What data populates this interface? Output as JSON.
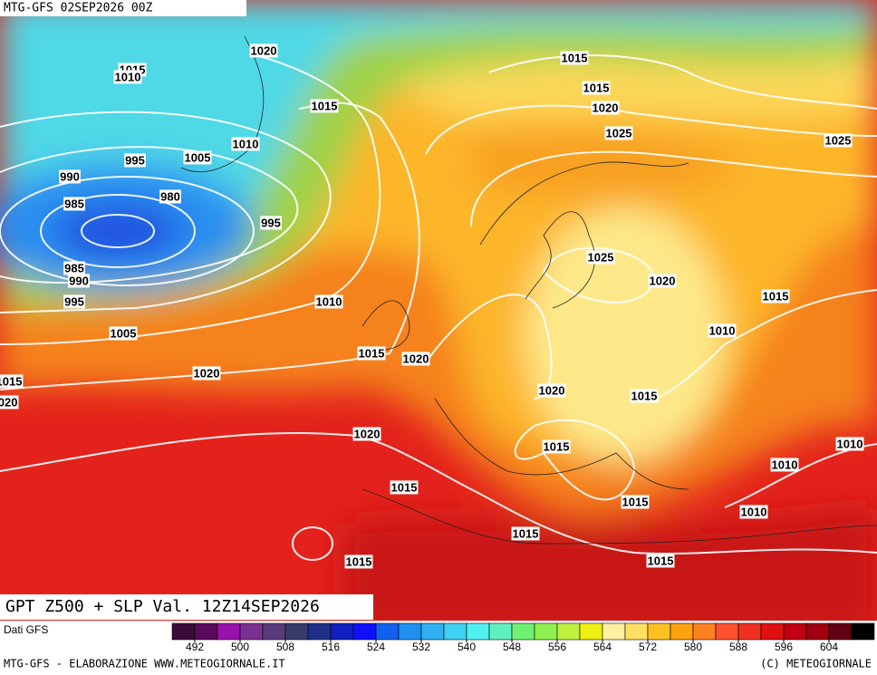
{
  "header": {
    "title": "MTG-GFS 02SEP2026 00Z"
  },
  "map": {
    "caption": "GPT Z500 + SLP Val. 12Z14SEP2026",
    "isobar_labels": [
      "1015",
      "1010",
      "1020",
      "1015",
      "1015",
      "1020",
      "1015",
      "1025",
      "1025",
      "1010",
      "995",
      "1005",
      "990",
      "980",
      "985",
      "995",
      "1025",
      "985",
      "990",
      "1020",
      "995",
      "1010",
      "1015",
      "1005",
      "1010",
      "1015",
      "1020",
      "1020",
      "1015",
      "1020",
      "1020",
      "1015",
      "1020",
      "1010",
      "1015",
      "1010",
      "1015",
      "1015",
      "1010",
      "1015",
      "1015",
      "1015"
    ]
  },
  "colorbar": {
    "source": "Dati GFS",
    "ticks": [
      492,
      500,
      508,
      516,
      524,
      532,
      540,
      548,
      556,
      564,
      572,
      580,
      588,
      596,
      604
    ],
    "colors": [
      "#3a0a3a",
      "#5a0a5a",
      "#9a10aa",
      "#7a3090",
      "#5a3a7a",
      "#3a3a6a",
      "#20308a",
      "#1020c0",
      "#1010ff",
      "#1060f0",
      "#2090f0",
      "#30b0f0",
      "#40d0f0",
      "#50f0f0",
      "#60f0c0",
      "#70f070",
      "#90f050",
      "#c0f040",
      "#f0f010",
      "#fff0a0",
      "#ffe060",
      "#ffc020",
      "#ffa010",
      "#ff8020",
      "#ff5030",
      "#f03020",
      "#e01010",
      "#c00010",
      "#a00010",
      "#600010",
      "#000000"
    ]
  },
  "footer": {
    "left": "MTG-GFS - ELABORAZIONE WWW.METEOGIORNALE.IT",
    "right": "(C) METEOGIORNALE"
  }
}
